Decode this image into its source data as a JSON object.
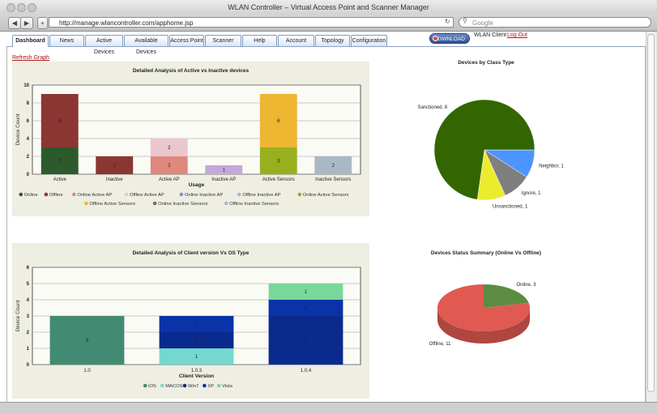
{
  "window_title": "WLAN Controller – Virtual Access Point and Scanner Manager",
  "browser": {
    "url": "http://manage.wlancontroller.com/apphome.jsp",
    "search_placeholder": "Google"
  },
  "tabs": [
    "Dashboard",
    "News",
    "Active Devices",
    "Available Devices",
    "Access Point",
    "Scanner",
    "Help",
    "Account",
    "Topology",
    "Configuration"
  ],
  "header": {
    "download": "DOWNLOAD",
    "user": "WLAN Client",
    "logout": "Log Out"
  },
  "refresh": "Refresh Graph",
  "chart_data": [
    {
      "type": "stacked_bar",
      "title": "Detailed Analysis of Active vs Inactive devices",
      "y_label": "Device Count",
      "x_label": "Usage",
      "categories": [
        "Active",
        "Inactive",
        "Active AP",
        "Inactive AP",
        "Active Sensors",
        "Inactive Sensors"
      ],
      "series": [
        {
          "name": "Online",
          "color": "#2d5a2d",
          "values": [
            3,
            null,
            null,
            null,
            null,
            null
          ]
        },
        {
          "name": "Offline",
          "color": "#8b3632",
          "values": [
            6,
            2,
            null,
            null,
            null,
            null
          ]
        },
        {
          "name": "Online Active AP",
          "color": "#e0887e",
          "values": [
            null,
            null,
            2,
            null,
            null,
            null
          ]
        },
        {
          "name": "Offline Active AP",
          "color": "#ecc6cf",
          "values": [
            null,
            null,
            2,
            null,
            null,
            null
          ]
        },
        {
          "name": "Online Inactive AP",
          "color": "#8c86d6",
          "values": [
            null,
            null,
            null,
            null,
            null,
            null
          ]
        },
        {
          "name": "Offline Inactive AP",
          "color": "#c3a9da",
          "values": [
            null,
            null,
            null,
            1,
            null,
            null
          ]
        },
        {
          "name": "Online Active Sensors",
          "color": "#98b01e",
          "values": [
            null,
            null,
            null,
            null,
            3,
            null
          ]
        },
        {
          "name": "Offline Active Sensors",
          "color": "#eeb631",
          "values": [
            null,
            null,
            null,
            null,
            6,
            null
          ]
        },
        {
          "name": "Online Inactive Sensors",
          "color": "#6e6e6e",
          "values": [
            null,
            null,
            null,
            null,
            null,
            null
          ]
        },
        {
          "name": "Offline Inactive Sensors",
          "color": "#a9b9c4",
          "values": [
            null,
            null,
            null,
            null,
            null,
            2
          ]
        }
      ],
      "ylim": [
        0,
        10
      ],
      "yticks": [
        0,
        2,
        4,
        6,
        8,
        10
      ],
      "grid": true
    },
    {
      "type": "pie",
      "title": "Devices by Class Type",
      "categories": [
        "Neighbor",
        "Ignore",
        "Unsanctioned",
        "Sanctioned"
      ],
      "values": [
        1,
        1,
        1,
        8
      ],
      "value_labels": [
        "Neighbor, 1",
        "Ignore, 1",
        "Unsanctioned, 1",
        "Sanctioned, 8"
      ],
      "colors": [
        "#4c95ff",
        "#7f7f7f",
        "#ecec2e",
        "#336600"
      ]
    },
    {
      "type": "stacked_bar",
      "title": "Detailed Analysis of Client version Vs OS Type",
      "y_label": "Device Count",
      "x_label": "Client Version",
      "categories": [
        "1.0",
        "1.0.3",
        "1.0.4"
      ],
      "series": [
        {
          "name": "iOS",
          "color": "#438a73",
          "values": [
            3,
            null,
            null
          ]
        },
        {
          "name": "MACOS",
          "color": "#74d8cf",
          "values": [
            null,
            1,
            null
          ]
        },
        {
          "name": "Win7",
          "color": "#0a2a8e",
          "values": [
            null,
            1,
            3
          ]
        },
        {
          "name": "XP",
          "color": "#0a33a8",
          "values": [
            null,
            1,
            1
          ]
        },
        {
          "name": "Vista",
          "color": "#7ad79a",
          "values": [
            null,
            null,
            1
          ]
        }
      ],
      "ylim": [
        0,
        6
      ],
      "yticks": [
        0,
        1,
        2,
        3,
        4,
        5,
        6
      ],
      "grid": true
    },
    {
      "type": "pie3d",
      "title": "Devices Status Summary (Online Vs Offline)",
      "categories": [
        "Online",
        "Offline"
      ],
      "values": [
        3,
        11
      ],
      "value_labels": [
        "Online, 3",
        "Offline, 11"
      ],
      "colors": [
        "#5b8c42",
        "#e05a52"
      ]
    }
  ]
}
